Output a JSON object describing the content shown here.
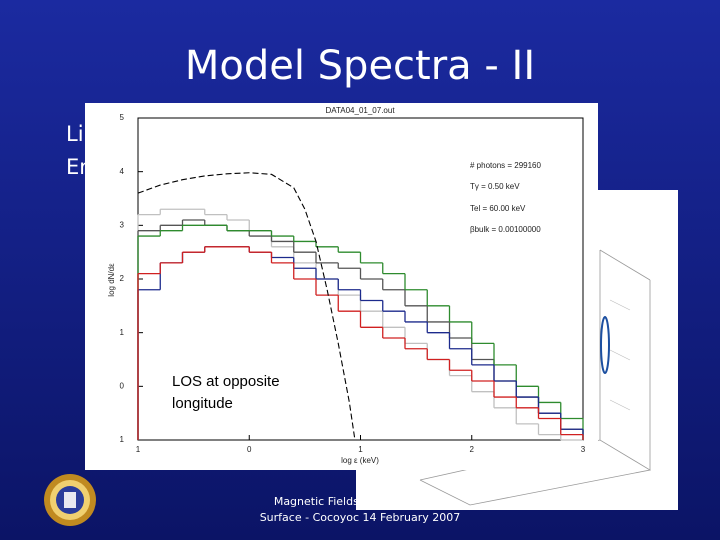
{
  "slide": {
    "title": "Model Spectra - II",
    "bullets": [
      "Li",
      "En"
    ],
    "caption": [
      "LOS at opposite",
      "longitude"
    ],
    "footer": [
      "Magnetic Fields in Neutron Star",
      "Surface - Cocoyoc 14 February 2007"
    ]
  },
  "plot": {
    "type": "histogram",
    "title": "DATA04_01_07.out",
    "xlabel": "log ε (keV)",
    "ylabel": "log dN/dε",
    "annotations": [
      "# photons = 299160",
      "Tγ = 0.50 keV",
      "Tel = 60.00 keV",
      "βbulk = 0.00100000"
    ],
    "xlim": [
      -1,
      3
    ],
    "xticks": [
      {
        "value": -1,
        "label": "1"
      },
      0,
      1,
      2,
      3
    ],
    "ylim": [
      -1,
      5
    ],
    "yticks": [
      {
        "value": -1,
        "label": "1"
      },
      0,
      1,
      2,
      3,
      4,
      5
    ],
    "bins": [
      -1,
      -0.8,
      -0.6,
      -0.4,
      -0.2,
      0,
      0.2,
      0.4,
      0.6,
      0.8,
      1,
      1.2,
      1.4,
      1.6,
      1.8,
      2,
      2.2,
      2.4,
      2.6,
      2.8,
      3
    ],
    "series": [
      {
        "color": "#c0c0c0",
        "values": [
          3.2,
          3.3,
          3.3,
          3.2,
          3.1,
          2.9,
          2.6,
          2.3,
          2.0,
          1.7,
          1.4,
          1.1,
          0.8,
          0.5,
          0.2,
          -0.1,
          -0.4,
          -0.7,
          -0.9,
          -1.0
        ]
      },
      {
        "color": "#555555",
        "values": [
          2.9,
          3.0,
          3.1,
          3.0,
          2.9,
          2.8,
          2.7,
          2.5,
          2.3,
          2.2,
          2.0,
          1.8,
          1.5,
          1.2,
          0.9,
          0.5,
          0.1,
          -0.2,
          -0.5,
          -0.8
        ]
      },
      {
        "color": "#2e8b2e",
        "values": [
          2.8,
          2.9,
          3.0,
          3.0,
          2.9,
          2.9,
          2.8,
          2.7,
          2.6,
          2.5,
          2.3,
          2.1,
          1.8,
          1.5,
          1.2,
          0.8,
          0.4,
          0.0,
          -0.3,
          -0.6
        ]
      },
      {
        "color": "#1c2a8c",
        "values": [
          1.8,
          2.3,
          2.5,
          2.6,
          2.6,
          2.5,
          2.4,
          2.2,
          2.0,
          1.8,
          1.6,
          1.4,
          1.2,
          1.0,
          0.7,
          0.4,
          0.1,
          -0.2,
          -0.5,
          -0.8
        ]
      },
      {
        "color": "#d02020",
        "values": [
          2.1,
          2.3,
          2.5,
          2.6,
          2.6,
          2.5,
          2.3,
          2.0,
          1.7,
          1.4,
          1.1,
          0.9,
          0.7,
          0.5,
          0.3,
          0.1,
          -0.2,
          -0.4,
          -0.6,
          -0.9
        ]
      }
    ],
    "curve": {
      "color": "#000000",
      "x": [
        -1,
        -0.8,
        -0.6,
        -0.4,
        -0.2,
        0,
        0.2,
        0.4,
        0.5,
        0.6,
        0.7,
        0.8,
        0.9,
        0.95
      ],
      "values": [
        3.6,
        3.75,
        3.85,
        3.92,
        3.96,
        3.98,
        3.95,
        3.7,
        3.3,
        2.7,
        1.8,
        0.8,
        -0.3,
        -1
      ]
    }
  }
}
